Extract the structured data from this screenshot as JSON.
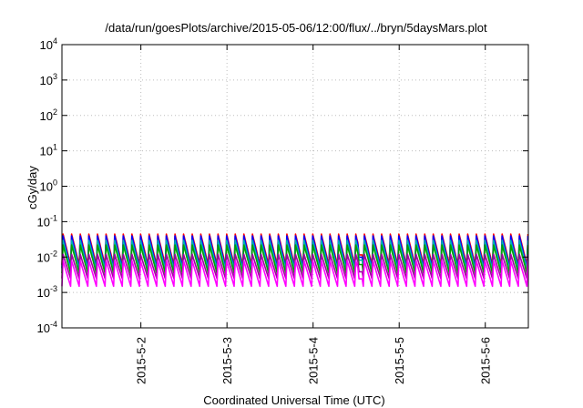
{
  "chart_data": {
    "type": "line",
    "title": "/data/run/goesPlots/archive/2015-05-06/12:00/flux/../bryn/5daysMars.plot",
    "xlabel": "Coordinated Universal Time (UTC)",
    "ylabel": "cGy/day",
    "yscale": "log",
    "ylim": [
      0.0001,
      10000
    ],
    "xlim": [
      "2015-05-01T02:00",
      "2015-05-06T12:00"
    ],
    "grid": true,
    "y_ticks": [
      {
        "base": "10",
        "exp": "-4"
      },
      {
        "base": "10",
        "exp": "-3"
      },
      {
        "base": "10",
        "exp": "-2"
      },
      {
        "base": "10",
        "exp": "-1"
      },
      {
        "base": "10",
        "exp": "0"
      },
      {
        "base": "10",
        "exp": "1"
      },
      {
        "base": "10",
        "exp": "2"
      },
      {
        "base": "10",
        "exp": "3"
      },
      {
        "base": "10",
        "exp": "4"
      }
    ],
    "x_ticks": [
      "2015-5-2",
      "2015-5-3",
      "2015-5-4",
      "2015-5-5",
      "2015-5-6"
    ],
    "x_tick_times": [
      "2015-05-02T00:00",
      "2015-05-03T00:00",
      "2015-05-04T00:00",
      "2015-05-05T00:00",
      "2015-05-06T00:00"
    ],
    "sawtooth_period_hours": 2.4,
    "gap_times": [
      "2015-05-04T12:30",
      "2015-05-04T14:00"
    ],
    "series": [
      {
        "color": "#ff0000",
        "peak": 0.045,
        "trough": 0.006
      },
      {
        "color": "#0000ff",
        "peak": 0.04,
        "trough": 0.005
      },
      {
        "color": "#00b0b0",
        "peak": 0.03,
        "trough": 0.0045
      },
      {
        "color": "#00a000",
        "peak": 0.022,
        "trough": 0.0035
      },
      {
        "color": "#a000a0",
        "peak": 0.012,
        "trough": 0.0025
      },
      {
        "color": "#ff00ff",
        "peak": 0.008,
        "trough": 0.0015
      }
    ]
  }
}
